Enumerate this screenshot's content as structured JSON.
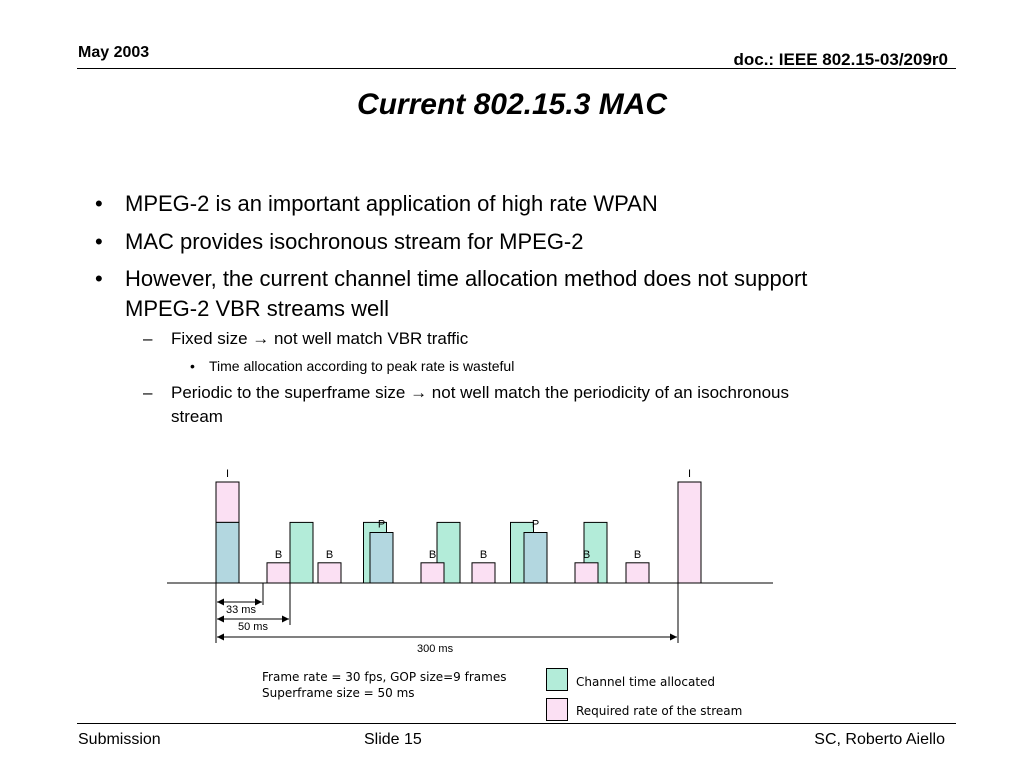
{
  "header": {
    "date": "May 2003",
    "doc": "doc.: IEEE 802.15-03/209r0"
  },
  "title": "Current 802.15.3 MAC",
  "bullets": [
    "MPEG-2 is an important application of high rate WPAN",
    "MAC provides isochronous stream for MPEG-2",
    "However, the current channel time allocation method does not support",
    "MPEG-2 VBR streams well"
  ],
  "sub1": {
    "marker": "–",
    "text": "Fixed size ",
    "arrow": "→",
    "after": " not well match VBR traffic"
  },
  "subsub1": {
    "marker": "•",
    "text": "Time allocation according to peak rate is wasteful"
  },
  "sub2": {
    "marker": "–",
    "line1_a": "Periodic to the superframe size ",
    "arrow": "→",
    "line1_b": "  not well match the periodicity of an isochronous",
    "line2": "stream"
  },
  "diagram": {
    "frames": [
      {
        "type": "I",
        "required": 100
      },
      {
        "type": "B",
        "required": 20
      },
      {
        "type": "B",
        "required": 20
      },
      {
        "type": "P",
        "required": 50
      },
      {
        "type": "B",
        "required": 20
      },
      {
        "type": "B",
        "required": 20
      },
      {
        "type": "P",
        "required": 50
      },
      {
        "type": "B",
        "required": 20
      },
      {
        "type": "B",
        "required": 20
      },
      {
        "type": "I",
        "required": 100
      }
    ],
    "allocated_level": 60,
    "dim_33": "33 ms",
    "dim_50": "50 ms",
    "dim_300": "300 ms",
    "caption_line1": "Frame rate = 30 fps, GOP size=9 frames",
    "caption_line2": "Superframe size = 50 ms",
    "legend_allocated": "Channel time allocated",
    "legend_required": "Required rate of the stream",
    "colors": {
      "allocated": "#b3ecd9",
      "required": "#fbe0f3",
      "overlap": "#b3d7e0",
      "stroke": "#000000"
    }
  },
  "footer": {
    "left": "Submission",
    "center": "Slide 15",
    "right": "SC, Roberto Aiello"
  }
}
